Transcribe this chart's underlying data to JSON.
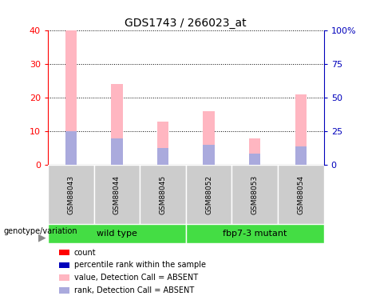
{
  "title": "GDS1743 / 266023_at",
  "samples": [
    "GSM88043",
    "GSM88044",
    "GSM88045",
    "GSM88052",
    "GSM88053",
    "GSM88054"
  ],
  "pink_bar_heights": [
    40,
    24,
    13,
    16,
    8,
    21
  ],
  "blue_bar_heights": [
    10,
    8,
    5,
    6,
    3.5,
    5.5
  ],
  "left_ylim": [
    0,
    40
  ],
  "right_ylim": [
    0,
    100
  ],
  "left_yticks": [
    0,
    10,
    20,
    30,
    40
  ],
  "right_yticks": [
    0,
    25,
    50,
    75,
    100
  ],
  "right_yticklabels": [
    "0",
    "25",
    "50",
    "75",
    "100%"
  ],
  "group_label": "genotype/variation",
  "bar_width": 0.25,
  "pink_color": "#FFB6C1",
  "blue_color": "#AAAADD",
  "red_color": "#FF0000",
  "dark_blue_color": "#0000BB",
  "sample_bg_color": "#CCCCCC",
  "wildtype_color": "#44DD44",
  "mutant_color": "#44DD44",
  "legend_items": [
    {
      "label": "count",
      "color": "#FF0000"
    },
    {
      "label": "percentile rank within the sample",
      "color": "#0000BB"
    },
    {
      "label": "value, Detection Call = ABSENT",
      "color": "#FFB6C1"
    },
    {
      "label": "rank, Detection Call = ABSENT",
      "color": "#AAAADD"
    }
  ],
  "grid_color": "black",
  "background_color": "#FFFFFF",
  "plot_bg_color": "#FFFFFF"
}
